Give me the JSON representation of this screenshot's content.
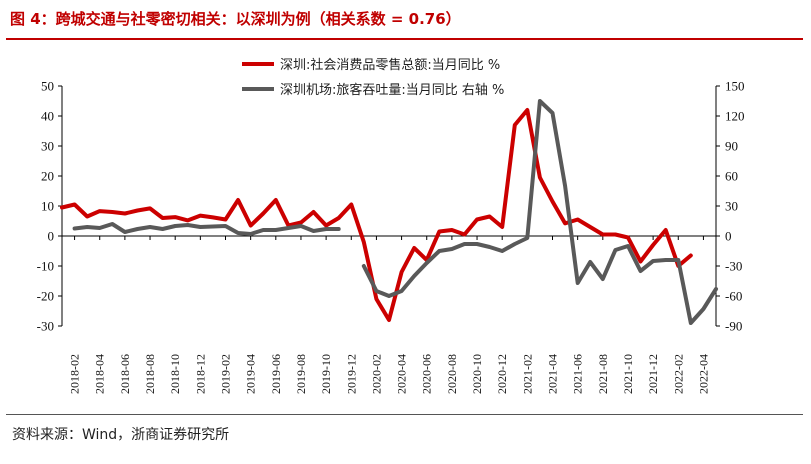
{
  "title": "图 4：跨城交通与社零密切相关：以深圳为例（相关系数 = 0.76）",
  "source": "资料来源：Wind，浙商证券研究所",
  "colors": {
    "title": "#c00000",
    "retail": "#cc0000",
    "airport": "#595959"
  },
  "chart_data": {
    "type": "line",
    "title": "跨城交通与社零密切相关：以深圳为例（相关系数 = 0.76）",
    "legend_position": "top",
    "grid": false,
    "x_tick_labels": [
      "2018-02",
      "2018-04",
      "2018-06",
      "2018-08",
      "2018-10",
      "2018-12",
      "2019-02",
      "2019-04",
      "2019-06",
      "2019-08",
      "2019-10",
      "2019-12",
      "2020-02",
      "2020-04",
      "2020-06",
      "2020-08",
      "2020-10",
      "2020-12",
      "2021-02",
      "2021-04",
      "2021-06",
      "2021-08",
      "2021-10",
      "2021-12",
      "2022-02",
      "2022-04"
    ],
    "x": [
      "2018-01",
      "2018-02",
      "2018-03",
      "2018-04",
      "2018-05",
      "2018-06",
      "2018-07",
      "2018-08",
      "2018-09",
      "2018-10",
      "2018-11",
      "2018-12",
      "2019-01",
      "2019-02",
      "2019-03",
      "2019-04",
      "2019-05",
      "2019-06",
      "2019-07",
      "2019-08",
      "2019-09",
      "2019-10",
      "2019-11",
      "2019-12",
      "2020-01",
      "2020-02",
      "2020-03",
      "2020-04",
      "2020-05",
      "2020-06",
      "2020-07",
      "2020-08",
      "2020-09",
      "2020-10",
      "2020-11",
      "2020-12",
      "2021-01",
      "2021-02",
      "2021-03",
      "2021-04",
      "2021-05",
      "2021-06",
      "2021-07",
      "2021-08",
      "2021-09",
      "2021-10",
      "2021-11",
      "2021-12",
      "2022-01",
      "2022-02",
      "2022-03",
      "2022-04",
      "2022-05"
    ],
    "y_left": {
      "ticks": [
        50,
        40,
        30,
        20,
        10,
        0,
        -10,
        -20,
        -30
      ],
      "range": [
        -30,
        50
      ]
    },
    "y_right": {
      "ticks": [
        150,
        120,
        90,
        60,
        30,
        0,
        -30,
        -60,
        -90
      ],
      "range": [
        -90,
        150
      ]
    },
    "series": [
      {
        "name": "深圳:社会消费品零售总额:当月同比 %",
        "axis": "left",
        "color": "#cc0000",
        "values": [
          9.5,
          10.5,
          6.5,
          8.3,
          8,
          7.5,
          8.5,
          9.2,
          6,
          6.3,
          5.2,
          6.8,
          6.2,
          5.5,
          12,
          3.5,
          7.5,
          12,
          3.5,
          4.5,
          8,
          3.5,
          6,
          10.5,
          -2,
          -21,
          -28,
          -12,
          -4,
          -8,
          1.5,
          2,
          0.5,
          5.5,
          6.5,
          3,
          37,
          42,
          19.5,
          11.5,
          4.2,
          5.5,
          3,
          0.5,
          0.5,
          -0.5,
          -8.5,
          -3,
          2,
          -10,
          -6.5,
          null,
          null
        ]
      },
      {
        "name": "深圳机场:旅客吞吐量:当月同比 右轴 %",
        "axis": "right",
        "color": "#595959",
        "values": [
          null,
          7.5,
          9,
          8,
          12,
          4,
          7,
          9,
          7,
          10,
          11,
          9,
          9.5,
          10,
          3,
          2,
          6,
          6,
          8,
          10,
          5,
          7,
          7,
          null,
          -30,
          -55,
          -60,
          -55,
          -40,
          -27,
          -15,
          -13,
          -8,
          -8,
          -11,
          -15,
          -8,
          -2,
          135,
          123,
          50,
          -47,
          -26,
          -43,
          -14,
          -10,
          -35,
          -25,
          -24,
          -24,
          -87,
          -73,
          -53
        ]
      }
    ]
  }
}
